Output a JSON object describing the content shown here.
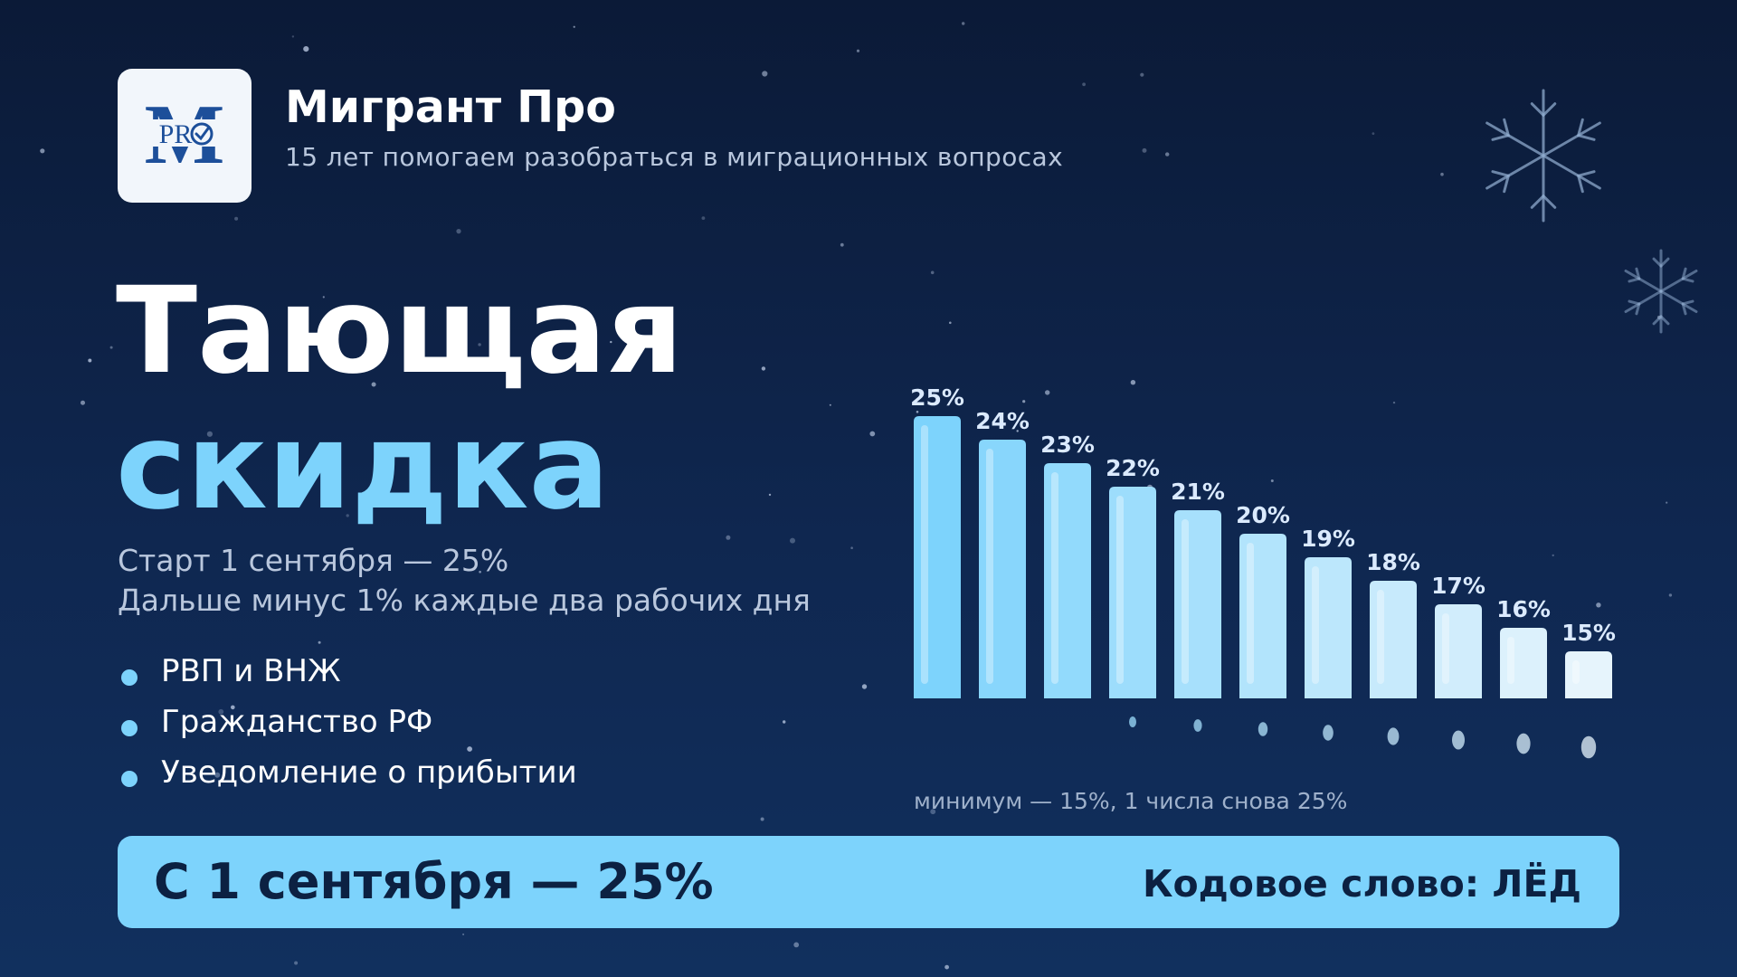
{
  "brand": {
    "logo_text": "PR",
    "logo_letter": "M",
    "name": "Мигрант Про",
    "tagline": "15 лет помогаем разобраться в миграционных вопросах"
  },
  "headline": {
    "line1": "Тающая",
    "line2": "скидка"
  },
  "description": {
    "line1": "Старт 1 сентября — 25%",
    "line2": "Дальше минус 1% каждые два рабочих дня"
  },
  "features": [
    "РВП и ВНЖ",
    "Гражданство РФ",
    "Уведомление о прибытии"
  ],
  "chart_data": {
    "type": "bar",
    "values": [
      25,
      24,
      23,
      22,
      21,
      20,
      19,
      18,
      17,
      16,
      15
    ],
    "value_labels": [
      "25%",
      "24%",
      "23%",
      "22%",
      "21%",
      "20%",
      "19%",
      "18%",
      "17%",
      "16%",
      "15%"
    ],
    "caption": "минимум — 15%, 1 числа снова 25%",
    "grid": false,
    "colors": {
      "start": "#7dd3fc",
      "end": "#e6f4fc",
      "label": "#dbeafe"
    }
  },
  "footer": {
    "left": "С 1 сентября — 25%",
    "right": "Кодовое слово: ЛЁД"
  },
  "colors": {
    "background_top": "#0b1a37",
    "background_bottom": "#11305e",
    "accent": "#7dd3fc",
    "text_muted": "#b9c7dd",
    "dark_text": "#0c2142"
  },
  "icons": [
    "snowflake-icon",
    "snowflake-icon",
    "bullet-dot-icon"
  ]
}
